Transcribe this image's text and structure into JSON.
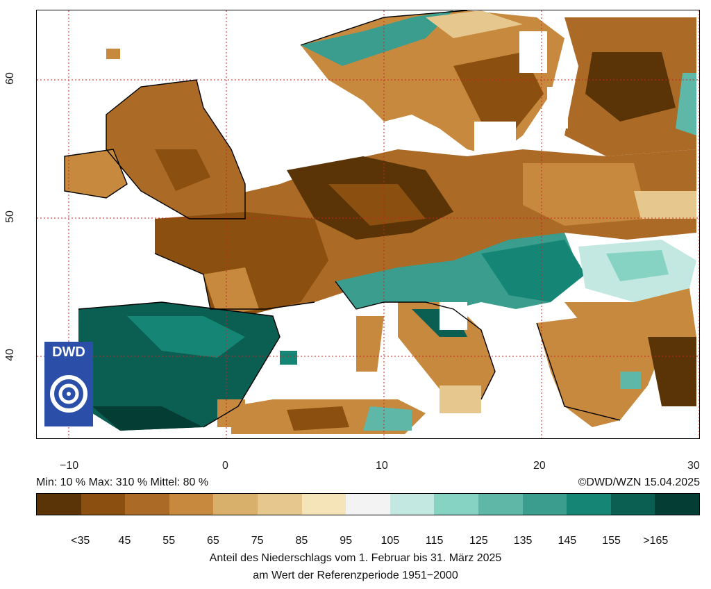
{
  "axes": {
    "x_ticks": [
      "−10",
      "0",
      "10",
      "20",
      "30"
    ],
    "y_ticks": [
      "40",
      "50",
      "60"
    ]
  },
  "stats": {
    "text": "Min: 10 %  Max: 310 %  Mittel: 80 %"
  },
  "copyright": "©DWD/WZN 15.04.2025",
  "logo": {
    "text": "DWD"
  },
  "legend": {
    "colors": [
      "#5a3406",
      "#8b4f10",
      "#ab6a26",
      "#c6893d",
      "#d8b06b",
      "#e6c88f",
      "#f4e4b8",
      "#f3f3f3",
      "#c3e8e1",
      "#86d2c3",
      "#5fb7a8",
      "#3a9d8e",
      "#158676",
      "#0a5f52",
      "#043d33"
    ],
    "labels": [
      "<35",
      "45",
      "55",
      "65",
      "75",
      "85",
      "95",
      "105",
      "115",
      "125",
      "135",
      "145",
      "155",
      ">165"
    ]
  },
  "caption": {
    "line1": "Anteil des Niederschlags vom 1. Februar bis 31. März 2025",
    "line2": "am Wert der Referenzperiode 1951−2000"
  }
}
